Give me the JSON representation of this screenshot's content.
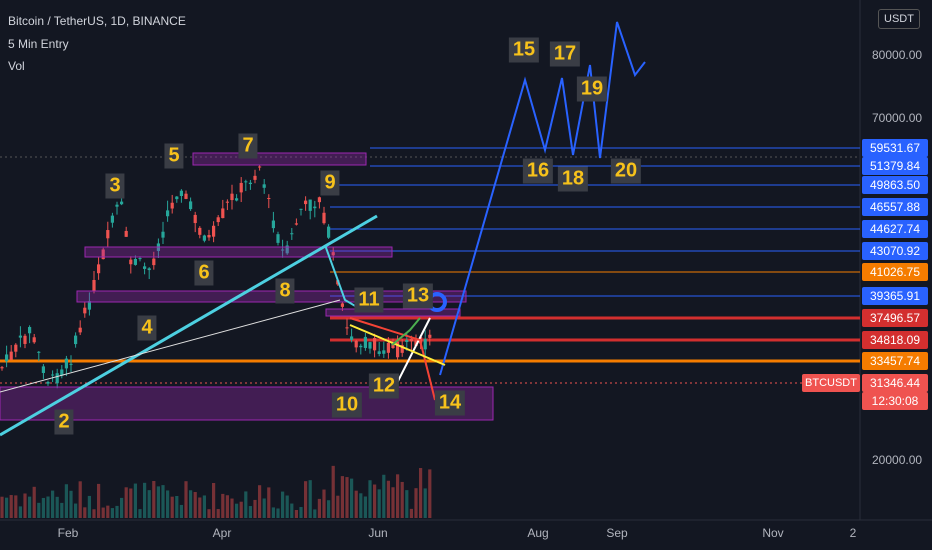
{
  "header": {
    "symbol": "Bitcoin / TetherUS, 1D, BINANCE",
    "indicator": "5 Min Entry",
    "volume": "Vol",
    "currency": "USDT"
  },
  "price_axis": [
    "80000.00",
    "70000.00",
    "20000.00"
  ],
  "price_tags": [
    {
      "text": "59531.67",
      "color": "#2962ff"
    },
    {
      "text": "51379.84",
      "color": "#2962ff"
    },
    {
      "text": "49863.50",
      "color": "#2962ff"
    },
    {
      "text": "46557.88",
      "color": "#2962ff"
    },
    {
      "text": "44627.74",
      "color": "#2962ff"
    },
    {
      "text": "43070.92",
      "color": "#2962ff"
    },
    {
      "text": "41026.75",
      "color": "#f57c00"
    },
    {
      "text": "39365.91",
      "color": "#2962ff"
    },
    {
      "text": "37496.57",
      "color": "#d32f2f"
    },
    {
      "text": "34818.09",
      "color": "#d32f2f"
    },
    {
      "text": "33457.74",
      "color": "#f57c00"
    }
  ],
  "last_price": {
    "symbol": "BTCUSDT",
    "price": "31346.44",
    "countdown": "12:30:08"
  },
  "time_axis": [
    "Feb",
    "Apr",
    "Jun",
    "Aug",
    "Sep",
    "Nov",
    "2"
  ],
  "wave_labels": [
    "2",
    "3",
    "4",
    "5",
    "6",
    "7",
    "8",
    "9",
    "10",
    "11",
    "12",
    "13",
    "14",
    "15",
    "16",
    "17",
    "18",
    "19",
    "20"
  ]
}
